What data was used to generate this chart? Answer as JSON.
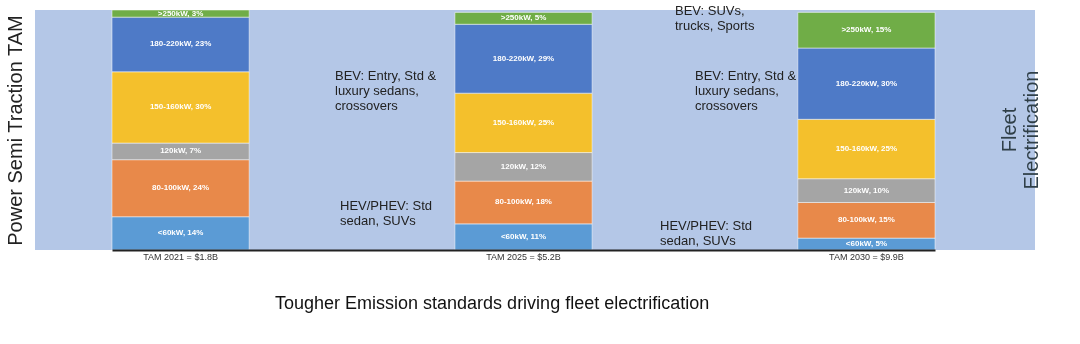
{
  "chart_data": {
    "type": "bar",
    "stacked": true,
    "ylabel": "Power Semi Traction TAM",
    "categories": [
      "TAM 2021 = $1.8B",
      "TAM 2025 = $5.2B",
      "TAM 2030 = $9.9B"
    ],
    "series": [
      {
        "color": "#5b9bd5",
        "values": [
          14,
          11,
          5
        ],
        "value_labels": [
          "<60kW, 14%",
          "<60kW, 11%",
          "<60kW, 5%"
        ]
      },
      {
        "color": "#e8894a",
        "values": [
          24,
          18,
          15
        ],
        "value_labels": [
          "80-100kW, 24%",
          "80-100kW, 18%",
          "80-100kW, 15%"
        ]
      },
      {
        "color": "#a5a5a5",
        "values": [
          7,
          12,
          10
        ],
        "value_labels": [
          "120kW, 7%",
          "120kW, 12%",
          "120kW, 10%"
        ]
      },
      {
        "color": "#f4c02c",
        "values": [
          30,
          25,
          25
        ],
        "value_labels": [
          "150-160kW, 30%",
          "150-160kW, 25%",
          "150-160kW, 25%"
        ]
      },
      {
        "color": "#4e7ac7",
        "values": [
          23,
          29,
          30
        ],
        "value_labels": [
          "180-220kW, 23%",
          "180-220kW, 29%",
          "180-220kW, 30%"
        ]
      },
      {
        "color": "#70ad47",
        "values": [
          3,
          5,
          15
        ],
        "value_labels": [
          ">250kW, 3%",
          ">250kW, 5%",
          ">250kW, 15%"
        ]
      }
    ],
    "annotations": [
      "BEV: Entry, Std & luxury sedans, crossovers",
      "HEV/PHEV: Std sedan, SUVs",
      "BEV: Entry, Std & luxury sedans, crossovers",
      "HEV/PHEV: Std sedan, SUVs",
      "BEV: SUVs, trucks, Sports",
      "Fleet Electrification",
      "Tougher Emission standards driving fleet electrification"
    ]
  }
}
